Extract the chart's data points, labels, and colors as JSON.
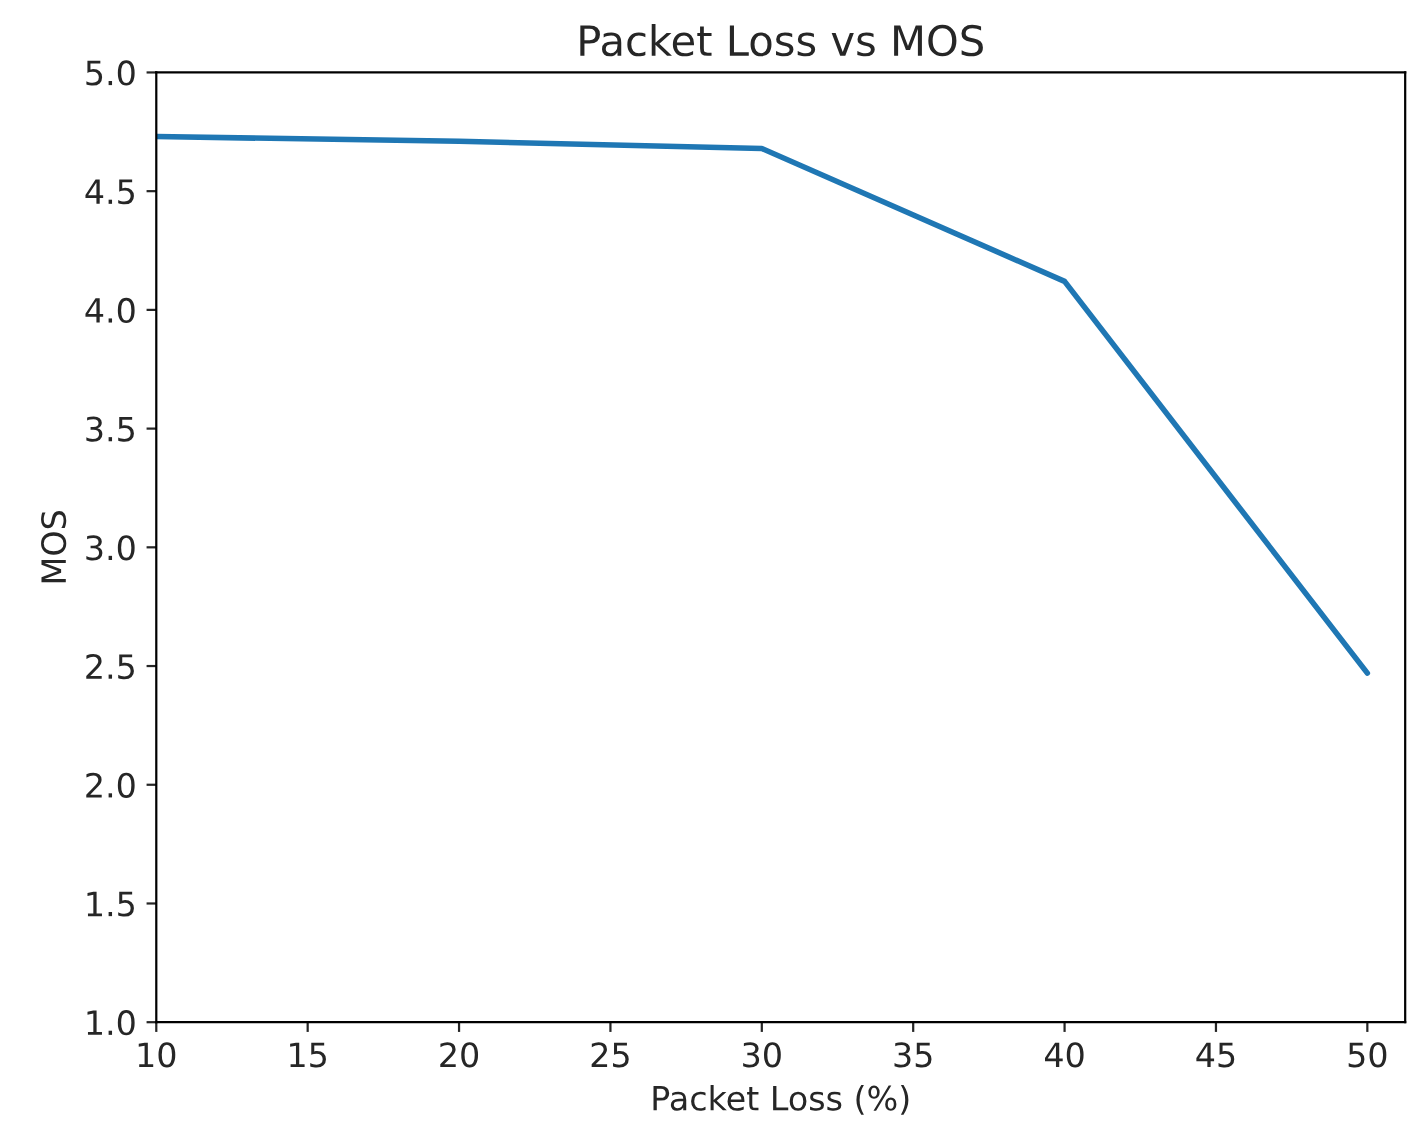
{
  "chart_data": {
    "type": "line",
    "title": "Packet Loss vs MOS",
    "xlabel": "Packet Loss (%)",
    "ylabel": "MOS",
    "x": [
      10,
      20,
      30,
      40,
      50
    ],
    "series": [
      {
        "color": "#1f77b4",
        "values": [
          4.73,
          4.71,
          4.68,
          4.12,
          2.47
        ]
      }
    ],
    "xlim": [
      10,
      51.25
    ],
    "xticks": [
      10,
      15,
      20,
      25,
      30,
      35,
      40,
      45,
      50
    ],
    "ylim": [
      1.0,
      5.0
    ],
    "yticks": [
      {
        "value": 1.0,
        "label": "1.0"
      },
      {
        "value": 1.5,
        "label": "1.5"
      },
      {
        "value": 2.0,
        "label": "2.0"
      },
      {
        "value": 2.5,
        "label": "2.5"
      },
      {
        "value": 3.0,
        "label": "3.0"
      },
      {
        "value": 3.5,
        "label": "3.5"
      },
      {
        "value": 4.0,
        "label": "4.0"
      },
      {
        "value": 4.5,
        "label": "4.5"
      },
      {
        "value": 5.0,
        "label": "5.0"
      }
    ],
    "grid": false,
    "legend": false
  }
}
